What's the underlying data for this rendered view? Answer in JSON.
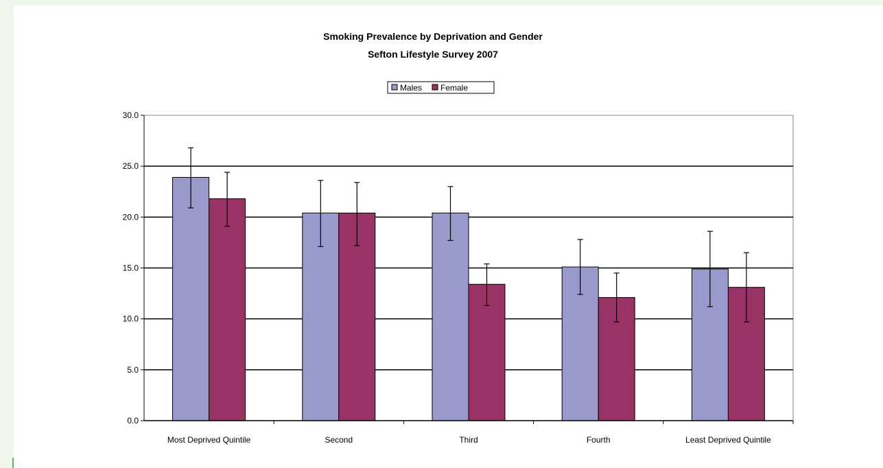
{
  "chart_data": {
    "type": "bar",
    "title": "Smoking Prevalence by Deprivation and Gender",
    "subtitle": "Sefton Lifestyle Survey 2007",
    "xlabel": "",
    "ylabel": "",
    "categories": [
      "Most Deprived Quintile",
      "Second",
      "Third",
      "Fourth",
      "Least Deprived Quintile"
    ],
    "series": [
      {
        "name": "Males",
        "color": "#9999cc",
        "values": [
          23.9,
          20.4,
          20.4,
          15.1,
          14.9
        ],
        "error_low": [
          20.9,
          17.1,
          17.7,
          12.4,
          11.2
        ],
        "error_high": [
          26.8,
          23.6,
          23.0,
          17.8,
          18.6
        ]
      },
      {
        "name": "Female",
        "color": "#993366",
        "values": [
          21.8,
          20.4,
          13.4,
          12.1,
          13.1
        ],
        "error_low": [
          19.1,
          17.2,
          11.3,
          9.7,
          9.7
        ],
        "error_high": [
          24.4,
          23.4,
          15.4,
          14.5,
          16.5
        ]
      }
    ],
    "ylim": [
      0,
      30
    ],
    "yticks": [
      "0.0",
      "5.0",
      "10.0",
      "15.0",
      "20.0",
      "25.0",
      "30.0"
    ],
    "grid": true,
    "legend_position": "top-center"
  }
}
